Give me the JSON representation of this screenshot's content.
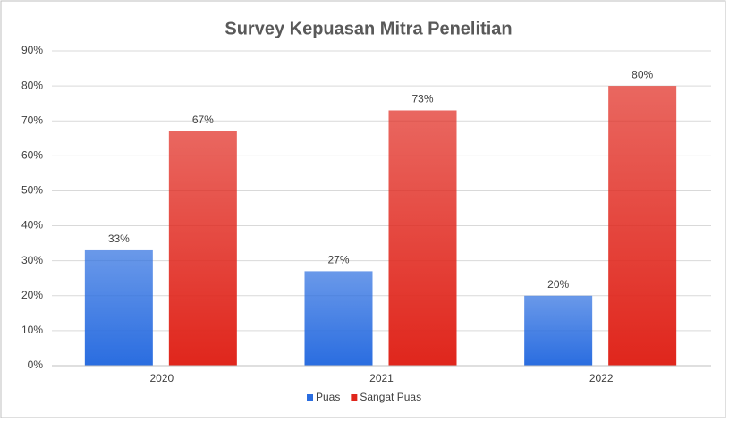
{
  "chart_data": {
    "type": "bar",
    "title": "Survey Kepuasan Mitra Penelitian",
    "categories": [
      "2020",
      "2021",
      "2022"
    ],
    "series": [
      {
        "name": "Puas",
        "color": "#2a6de0",
        "values": [
          33,
          27,
          20
        ],
        "value_labels": [
          "33%",
          "27%",
          "20%"
        ]
      },
      {
        "name": "Sangat Puas",
        "color": "#e0261c",
        "values": [
          67,
          73,
          80
        ],
        "value_labels": [
          "67%",
          "73%",
          "80%"
        ]
      }
    ],
    "ylim": [
      0,
      90
    ],
    "yticks": [
      {
        "value": 0,
        "label": "0%"
      },
      {
        "value": 10,
        "label": "10%"
      },
      {
        "value": 20,
        "label": "20%"
      },
      {
        "value": 30,
        "label": "30%"
      },
      {
        "value": 40,
        "label": "40%"
      },
      {
        "value": 50,
        "label": "50%"
      },
      {
        "value": 60,
        "label": "60%"
      },
      {
        "value": 70,
        "label": "70%"
      },
      {
        "value": 80,
        "label": "80%"
      },
      {
        "value": 90,
        "label": "90%"
      }
    ],
    "grid": true,
    "legend": "bottom"
  }
}
